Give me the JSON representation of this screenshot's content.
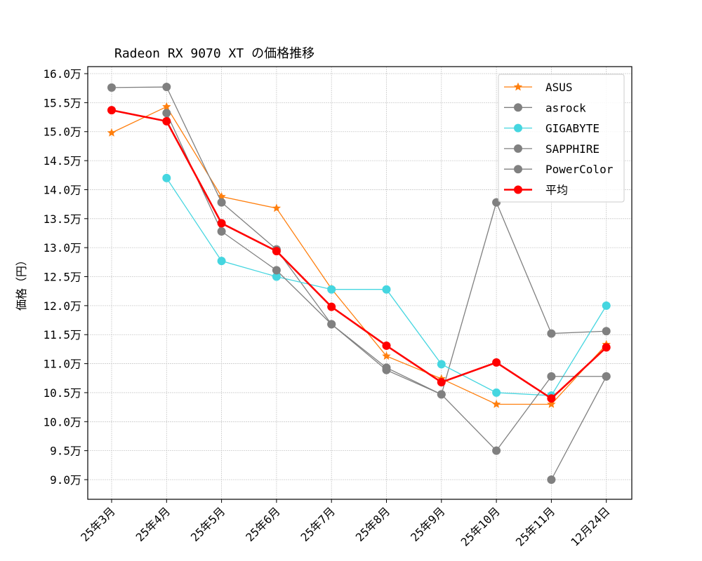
{
  "chart_data": {
    "type": "line",
    "title": "Radeon RX 9070 XT の価格推移",
    "xlabel": "",
    "ylabel": "価格（円）",
    "categories": [
      "25年3月",
      "25年4月",
      "25年5月",
      "25年6月",
      "25年7月",
      "25年8月",
      "25年9月",
      "25年10月",
      "25年11月",
      "12月24日"
    ],
    "yticks": [
      "9.0万",
      "9.5万",
      "10.0万",
      "10.5万",
      "11.0万",
      "11.5万",
      "12.0万",
      "12.5万",
      "13.0万",
      "13.5万",
      "14.0万",
      "14.5万",
      "15.0万",
      "15.5万",
      "16.0万"
    ],
    "ytick_values": [
      9.0,
      9.5,
      10.0,
      10.5,
      11.0,
      11.5,
      12.0,
      12.5,
      13.0,
      13.5,
      14.0,
      14.5,
      15.0,
      15.5,
      16.0
    ],
    "yunit": "万円",
    "ylim": [
      8.7,
      16.1
    ],
    "grid": true,
    "legend_position": "top-right",
    "series": [
      {
        "name": "ASUS",
        "color": "#ff7f0e",
        "marker": "star",
        "values": [
          14.98,
          15.43,
          13.88,
          13.68,
          12.29,
          11.13,
          10.74,
          10.3,
          10.3,
          11.33
        ]
      },
      {
        "name": "asrock",
        "color": "#808080",
        "marker": "circle",
        "values": [
          15.76,
          15.77,
          13.78,
          12.97,
          11.68,
          10.93,
          10.47,
          13.78,
          11.52,
          11.56
        ]
      },
      {
        "name": "GIGABYTE",
        "color": "#45d6e0",
        "marker": "circle",
        "values": [
          null,
          14.2,
          12.77,
          12.5,
          12.28,
          12.28,
          10.99,
          10.5,
          10.45,
          12.0
        ]
      },
      {
        "name": "SAPPHIRE",
        "color": "#808080",
        "marker": "circle",
        "values": [
          null,
          15.32,
          13.28,
          12.61,
          11.68,
          10.89,
          10.47,
          9.5,
          10.78,
          10.78
        ]
      },
      {
        "name": "PowerColor",
        "color": "#808080",
        "marker": "circle",
        "values": [
          null,
          null,
          null,
          null,
          null,
          null,
          null,
          null,
          9.0,
          10.78
        ]
      },
      {
        "name": "平均",
        "color": "#ff0000",
        "marker": "circle",
        "values": [
          15.37,
          15.18,
          13.42,
          12.94,
          11.98,
          11.31,
          10.68,
          11.02,
          10.4,
          11.28
        ]
      }
    ]
  }
}
